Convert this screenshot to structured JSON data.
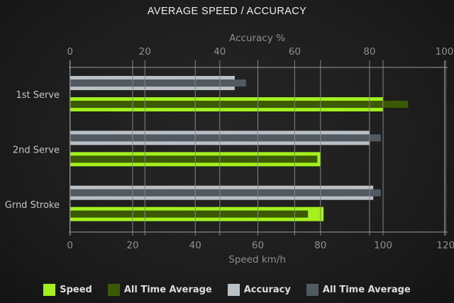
{
  "title": "AVERAGE SPEED / ACCURACY",
  "colors": {
    "background": "#1e1e1e",
    "speed": "#a3f11c",
    "speed_average": "#3c5a06",
    "accuracy": "#bac1c6",
    "accuracy_average": "#525a61",
    "grid": "#858585",
    "axis_line": "#9a9a9a",
    "title_text": "#ededed",
    "axis_text": "#8f8f8f",
    "category_text": "#c5c5c5",
    "legend_text": "#dcdcdc"
  },
  "chart_data": {
    "type": "bar",
    "orientation": "horizontal",
    "title": "AVERAGE SPEED / ACCURACY",
    "categories": [
      "1st Serve",
      "2nd Serve",
      "Grnd Stroke"
    ],
    "axes": {
      "top": {
        "label": "Accuracy %",
        "min": 0,
        "max": 100,
        "ticks": [
          0,
          20,
          40,
          60,
          80,
          100
        ]
      },
      "bottom": {
        "label": "Speed km/h",
        "min": 0,
        "max": 120,
        "ticks": [
          0,
          20,
          40,
          60,
          80,
          100,
          120
        ]
      }
    },
    "grid": true,
    "series": [
      {
        "name": "Speed",
        "axis": "bottom",
        "role": "main",
        "color": "speed",
        "values": [
          100,
          80,
          81
        ]
      },
      {
        "name": "All Time Average",
        "axis": "bottom",
        "role": "average",
        "color": "speed_average",
        "values": [
          108,
          79,
          76
        ]
      },
      {
        "name": "Accuracy",
        "axis": "top",
        "role": "main",
        "color": "accuracy",
        "values": [
          44,
          80,
          81
        ]
      },
      {
        "name": "All Time Average",
        "axis": "top",
        "role": "average",
        "color": "accuracy_average",
        "values": [
          47,
          83,
          83
        ]
      }
    ],
    "legend_position": "bottom",
    "legend": [
      {
        "label": "Speed",
        "color": "speed"
      },
      {
        "label": "All Time Average",
        "color": "speed_average"
      },
      {
        "label": "Accuracy",
        "color": "accuracy"
      },
      {
        "label": "All Time Average",
        "color": "accuracy_average"
      }
    ]
  }
}
